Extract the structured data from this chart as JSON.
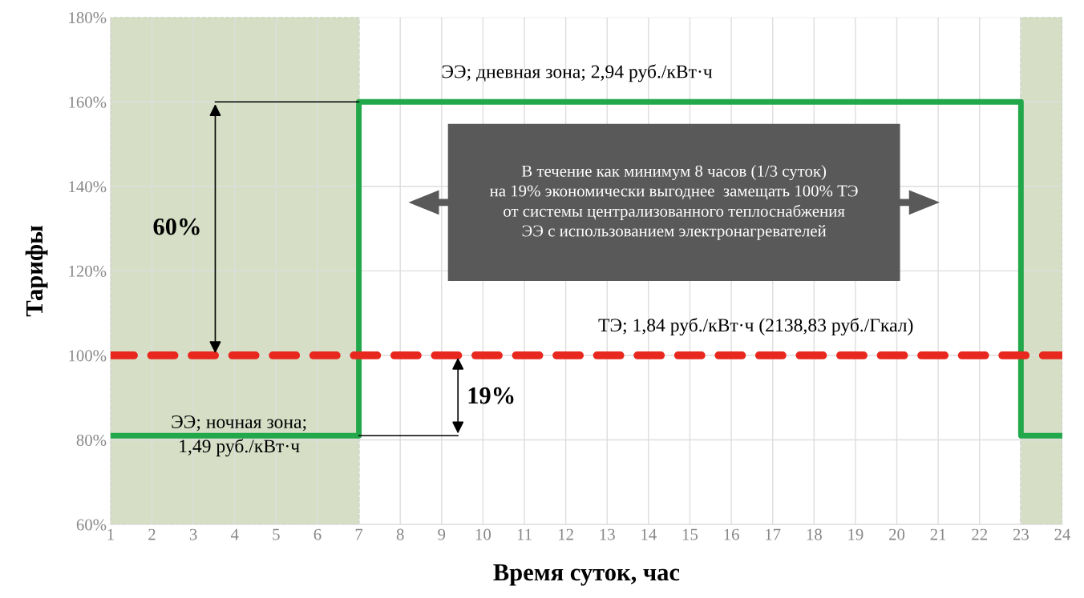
{
  "chart_data": {
    "type": "step",
    "xlabel": "Время суток, час",
    "ylabel": "Тарифы",
    "xlim": [
      1,
      24
    ],
    "xticks": [
      1,
      2,
      3,
      4,
      5,
      6,
      7,
      8,
      9,
      10,
      11,
      12,
      13,
      14,
      15,
      16,
      17,
      18,
      19,
      20,
      21,
      22,
      23,
      24
    ],
    "ylim": [
      60,
      180
    ],
    "yticks": [
      {
        "value": 60,
        "label": "60%"
      },
      {
        "value": 80,
        "label": "80%"
      },
      {
        "value": 100,
        "label": "100%"
      },
      {
        "value": 120,
        "label": "120%"
      },
      {
        "value": 140,
        "label": "140%"
      },
      {
        "value": 160,
        "label": "160%"
      },
      {
        "value": 180,
        "label": "180%"
      }
    ],
    "grid": true,
    "series": [
      {
        "color": "#22a84a",
        "line_style": "solid",
        "x": [
          1,
          7,
          23,
          24
        ],
        "values": [
          81,
          160,
          81,
          81
        ]
      },
      {
        "type": "line",
        "color": "#e8281e",
        "line_style": "dashed",
        "x": [
          1,
          24
        ],
        "values": [
          100,
          100
        ]
      }
    ],
    "bands": [
      {
        "axis": "x",
        "from": 1,
        "to": 7,
        "color": "#d6dfc6"
      },
      {
        "axis": "x",
        "from": 23,
        "to": 24,
        "color": "#d6dfc6"
      }
    ],
    "annotations": [
      "ЭЭ; дневная зона; 2,94 руб./кВт·ч",
      "ТЭ; 1,84 руб./кВт·ч (2138,83 руб./Гкал)",
      "ЭЭ; ночная зона;\n1,49 руб./кВт·ч",
      "60%",
      "19%",
      "В течение как минимум 8 часов (1/3 суток)\nна 19% экономически выгоднее  замещать 100% ТЭ\nот системы централизованного теплоснабжения\nЭЭ с использованием электронагревателей"
    ]
  }
}
